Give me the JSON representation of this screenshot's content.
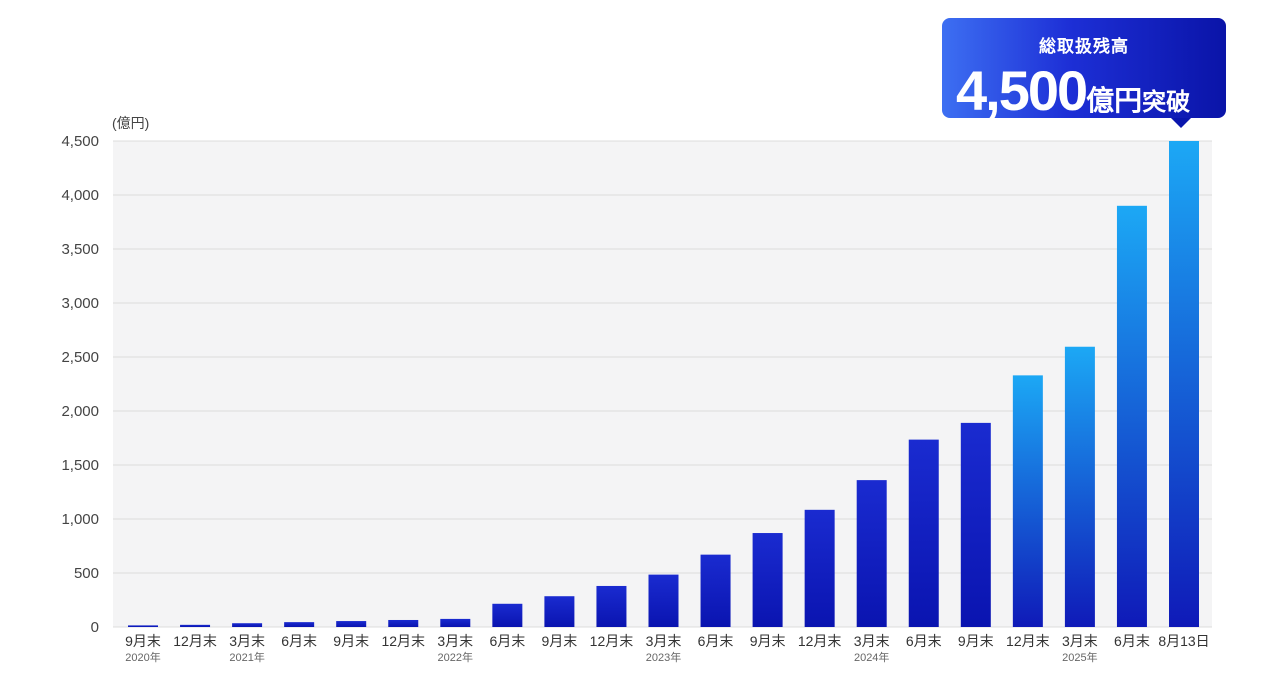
{
  "callout": {
    "title": "総取扱残高",
    "amount": "4,500",
    "unit": "億円",
    "suffix": "突破"
  },
  "chart_data": {
    "type": "bar",
    "unit_label": "(億円)",
    "categories": [
      "9月末",
      "12月末",
      "3月末",
      "6月末",
      "9月末",
      "12月末",
      "3月末",
      "6月末",
      "9月末",
      "12月末",
      "3月末",
      "6月末",
      "9月末",
      "12月末",
      "3月末",
      "6月末",
      "9月末",
      "12月末",
      "3月末",
      "6月末",
      "8月13日"
    ],
    "year_labels": [
      "2020年",
      "",
      "2021年",
      "",
      "",
      "",
      "2022年",
      "",
      "",
      "",
      "2023年",
      "",
      "",
      "",
      "2024年",
      "",
      "",
      "",
      "2025年",
      "",
      ""
    ],
    "values": [
      15,
      20,
      35,
      45,
      55,
      65,
      75,
      215,
      285,
      380,
      485,
      670,
      870,
      1085,
      1360,
      1735,
      1890,
      2330,
      2595,
      3900,
      4500
    ],
    "ylim": [
      0,
      4500
    ],
    "yticks": [
      0,
      500,
      1000,
      1500,
      2000,
      2500,
      3000,
      3500,
      4000,
      4500
    ],
    "ytick_labels": [
      "0",
      "500",
      "1,000",
      "1,500",
      "2,000",
      "2,500",
      "3,000",
      "3,500",
      "4,000",
      "4,500"
    ],
    "grid": true,
    "colors": {
      "bar_top": "#1a2bd0",
      "bar_bottom": "#0a14b0",
      "highlight_top": "#1ca8f5",
      "highlight_bottom": "#0f1ab8",
      "plot_bg": "#f4f4f5",
      "grid": "#dcdcdc"
    }
  }
}
